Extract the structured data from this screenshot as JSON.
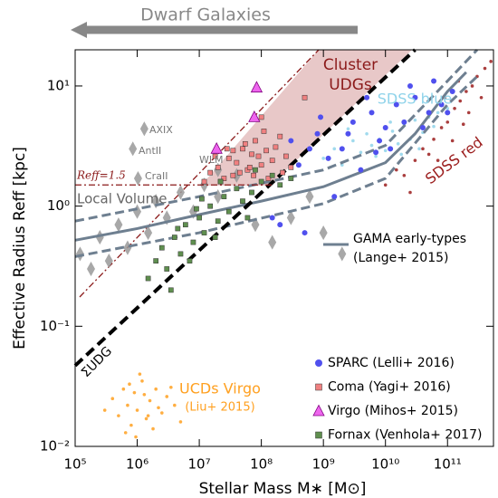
{
  "chart_data": {
    "type": "scatter",
    "top_note": "Dwarf Galaxies",
    "xlabel": "Stellar Mass M∗ [M⊙]",
    "ylabel": "Effective Radius Reff [kpc]",
    "log_x": true,
    "log_y": true,
    "xlim": [
      100000,
      550000000000
    ],
    "ylim": [
      0.01,
      20
    ],
    "xticks": [
      {
        "value": 100000,
        "label": "10⁵"
      },
      {
        "value": 1000000,
        "label": "10⁶"
      },
      {
        "value": 10000000,
        "label": "10⁷"
      },
      {
        "value": 100000000,
        "label": "10⁸"
      },
      {
        "value": 1000000000,
        "label": "10⁹"
      },
      {
        "value": 10000000000,
        "label": "10¹⁰"
      },
      {
        "value": 100000000000,
        "label": "10¹¹"
      }
    ],
    "yticks": [
      {
        "value": 0.01,
        "label": "10⁻²"
      },
      {
        "value": 0.1,
        "label": "10⁻¹"
      },
      {
        "value": 1,
        "label": "10⁰"
      },
      {
        "value": 10,
        "label": "10¹"
      }
    ],
    "clouds": [
      {
        "name": "SDSS blue",
        "color": "#8fd3ea",
        "x": [
          1000000000.0,
          1500000000.0,
          2000000000.0,
          3000000000.0,
          4000000000.0,
          5000000000.0,
          6000000000.0,
          8000000000.0,
          10000000000.0,
          13000000000.0,
          16000000000.0,
          20000000000.0,
          25000000000.0,
          30000000000.0,
          40000000000.0,
          50000000000.0,
          70000000000.0,
          100000000000.0,
          2500000000.0,
          7000000000.0,
          12000000000.0,
          18000000000.0,
          35000000000.0,
          60000000000.0
        ],
        "y": [
          2.5,
          3,
          2.2,
          3.5,
          2.8,
          4,
          3.2,
          3.6,
          2.9,
          4.2,
          3.3,
          4.8,
          3.6,
          5.2,
          4.1,
          5.5,
          6,
          6.5,
          4.4,
          2.6,
          5,
          2.7,
          3,
          4.6
        ]
      },
      {
        "name": "SDSS red",
        "color": "#9b1c1c",
        "x": [
          10000000000.0,
          15000000000.0,
          20000000000.0,
          30000000000.0,
          40000000000.0,
          50000000000.0,
          60000000000.0,
          80000000000.0,
          100000000000.0,
          130000000000.0,
          160000000000.0,
          200000000000.0,
          250000000000.0,
          300000000000.0,
          400000000000.0,
          500000000000.0,
          25000000000.0,
          70000000000.0,
          120000000000.0,
          180000000000.0,
          220000000000.0,
          350000000000.0,
          90000000000.0,
          150000000000.0
        ],
        "y": [
          1.5,
          2,
          1.8,
          2.4,
          3,
          2.7,
          3.6,
          4.5,
          5,
          6.5,
          7.5,
          9,
          10,
          12,
          14,
          16,
          1.3,
          2.4,
          3.5,
          4.8,
          6,
          8,
          8,
          11
        ]
      },
      {
        "name": "Local Volume",
        "color": "#999999",
        "marker": "diamond",
        "x": [
          120000.0,
          180000.0,
          250000.0,
          350000.0,
          500000.0,
          700000.0,
          1000000.0,
          1500000.0,
          2000000.0,
          3000000.0,
          5000000.0,
          8000000.0,
          12000000.0,
          20000000.0,
          40000000.0,
          80000000.0,
          150000000.0,
          300000000.0,
          600000000.0,
          1000000000.0,
          2000000000.0,
          1300000.0,
          850000.0,
          1030000.0,
          20000000.0
        ],
        "y": [
          0.4,
          0.3,
          0.55,
          0.35,
          0.7,
          0.45,
          0.9,
          0.6,
          1.1,
          0.8,
          1.3,
          0.9,
          1.5,
          1.2,
          1.8,
          0.7,
          0.5,
          0.8,
          1.2,
          0.6,
          0.4,
          4.4,
          3.0,
          1.7,
          2.0
        ]
      },
      {
        "name": "UCDs Virgo",
        "note": "(Liu+ 2015)",
        "color": "#ffa020",
        "x": [
          300000.0,
          400000.0,
          500000.0,
          600000.0,
          700000.0,
          800000.0,
          900000.0,
          1000000.0,
          1200000.0,
          1400000.0,
          1600000.0,
          2000000.0,
          2500000.0,
          3000000.0,
          4000000.0,
          5000000.0,
          650000.0,
          1100000.0,
          1800000.0,
          2200000.0,
          750000.0,
          1300000.0,
          3500000.0,
          950000.0,
          1500000.0
        ],
        "y": [
          0.02,
          0.025,
          0.018,
          0.03,
          0.022,
          0.015,
          0.028,
          0.02,
          0.035,
          0.017,
          0.024,
          0.03,
          0.019,
          0.026,
          0.022,
          0.016,
          0.013,
          0.04,
          0.014,
          0.021,
          0.033,
          0.027,
          0.031,
          0.012,
          0.018
        ]
      }
    ],
    "labeled_points": [
      "AXIX",
      "AntII",
      "CraII",
      "WLM"
    ],
    "series": [
      {
        "name": "SPARC (Lelli+ 2016)",
        "color": "#5050ee",
        "marker": "circle",
        "x": [
          300000000.0,
          500000000.0,
          800000000.0,
          1200000000.0,
          2000000000.0,
          3000000000.0,
          4000000000.0,
          6000000000.0,
          8000000000.0,
          10000000000.0,
          15000000000.0,
          20000000000.0,
          30000000000.0,
          50000000000.0,
          80000000000.0,
          120000000000.0,
          200000000.0,
          600000000.0,
          1500000000.0,
          2500000000.0,
          5000000000.0,
          7000000000.0,
          12000000000.0,
          25000000000.0,
          40000000000.0,
          60000000000.0,
          100000000000.0,
          150000000.0,
          400000000.0,
          900000000.0
        ],
        "values": [
          3.5,
          0.6,
          4,
          2.5,
          3,
          5,
          2,
          6,
          3.5,
          4.5,
          7,
          5,
          8,
          6,
          7,
          9,
          0.7,
          3,
          1.2,
          4,
          8,
          2.8,
          3,
          10,
          4.5,
          11,
          6,
          0.8,
          2.2,
          5.5
        ]
      },
      {
        "name": "Coma (Yagi+ 2016)",
        "color": "#f08080",
        "marker": "square",
        "x": [
          12000000.0,
          15000000.0,
          20000000.0,
          25000000.0,
          30000000.0,
          35000000.0,
          40000000.0,
          50000000.0,
          60000000.0,
          70000000.0,
          80000000.0,
          100000000.0,
          120000000.0,
          150000000.0,
          200000000.0,
          250000000.0,
          300000000.0,
          18000000.0,
          22000000.0,
          28000000.0,
          45000000.0,
          55000000.0,
          65000000.0,
          90000000.0,
          110000000.0,
          130000000.0,
          170000000.0,
          220000000.0,
          35000000.0,
          75000000.0,
          100000000.0,
          500000000.0
        ],
        "values": [
          1.6,
          1.9,
          2.1,
          1.7,
          2.5,
          1.8,
          2.3,
          3,
          2.0,
          2.7,
          3.5,
          2.2,
          2.9,
          2.4,
          3.8,
          2.6,
          2.1,
          2.6,
          1.6,
          3.0,
          1.9,
          3.3,
          2.1,
          2.6,
          4.2,
          1.7,
          3.1,
          1.9,
          2.9,
          1.8,
          5.5,
          8
        ]
      },
      {
        "name": "Virgo (Mihos+ 2015)",
        "color": "#ee66ee",
        "marker": "triangle",
        "x": [
          84000000,
          77000000,
          19000000
        ],
        "values": [
          9.7,
          5.5,
          3.0
        ]
      },
      {
        "name": "Fornax (Venhola+ 2017)",
        "color": "#5f8f4f",
        "marker": "square",
        "x": [
          1500000.0,
          2000000.0,
          2500000.0,
          3000000.0,
          4000000.0,
          5000000.0,
          6000000.0,
          8000000.0,
          10000000.0,
          12000000.0,
          15000000.0,
          20000000.0,
          25000000.0,
          30000000.0,
          40000000.0,
          50000000.0,
          70000000.0,
          100000000.0,
          150000000.0,
          200000000.0,
          300000000.0,
          3500000.0,
          7000000.0,
          9000000.0,
          18000000.0,
          60000000.0,
          4500000.0,
          11000000.0,
          22000000.0,
          80000000.0
        ],
        "values": [
          0.25,
          0.35,
          0.45,
          0.3,
          0.55,
          0.4,
          0.7,
          0.5,
          0.8,
          0.6,
          1.0,
          0.75,
          1.2,
          0.9,
          1.4,
          1.1,
          1.3,
          1.6,
          1.8,
          1.5,
          1.7,
          0.2,
          0.35,
          0.95,
          0.55,
          0.8,
          0.65,
          1.15,
          1.6,
          2.0
        ]
      }
    ],
    "lines": [
      {
        "name": "GAMA early-types",
        "note": "(Lange+ 2015)",
        "color": "#6e7f90",
        "style": "solid",
        "x": [
          100000,
          1000000,
          10000000,
          100000000,
          1000000000,
          10000000000,
          30000000000,
          100000000000,
          200000000000
        ],
        "values": [
          0.52,
          0.65,
          0.85,
          1.1,
          1.45,
          2.3,
          4,
          9,
          13
        ]
      },
      {
        "color": "#6e7f90",
        "style": "dashed",
        "x": [
          100000,
          10000000,
          1000000000,
          10000000000,
          100000000000,
          300000000000
        ],
        "values": [
          0.75,
          1.2,
          2.0,
          3.2,
          11,
          20
        ]
      },
      {
        "color": "#6e7f90",
        "style": "dashed",
        "x": [
          100000,
          10000000,
          1000000000,
          10000000000,
          100000000000,
          300000000000
        ],
        "values": [
          0.38,
          0.6,
          1.05,
          1.7,
          7,
          12
        ]
      },
      {
        "name": "ΣUDG",
        "color": "#000000",
        "style": "bigdash",
        "x": [
          100000,
          30000000000
        ],
        "values": [
          0.047,
          20
        ]
      },
      {
        "name": "Reff=1.5",
        "color": "#8b1a1a",
        "style": "dashdot",
        "x": [
          100000,
          150000000
        ],
        "values": [
          1.5,
          1.5
        ]
      }
    ],
    "cluster_label": [
      "Cluster",
      "UDGs"
    ]
  }
}
